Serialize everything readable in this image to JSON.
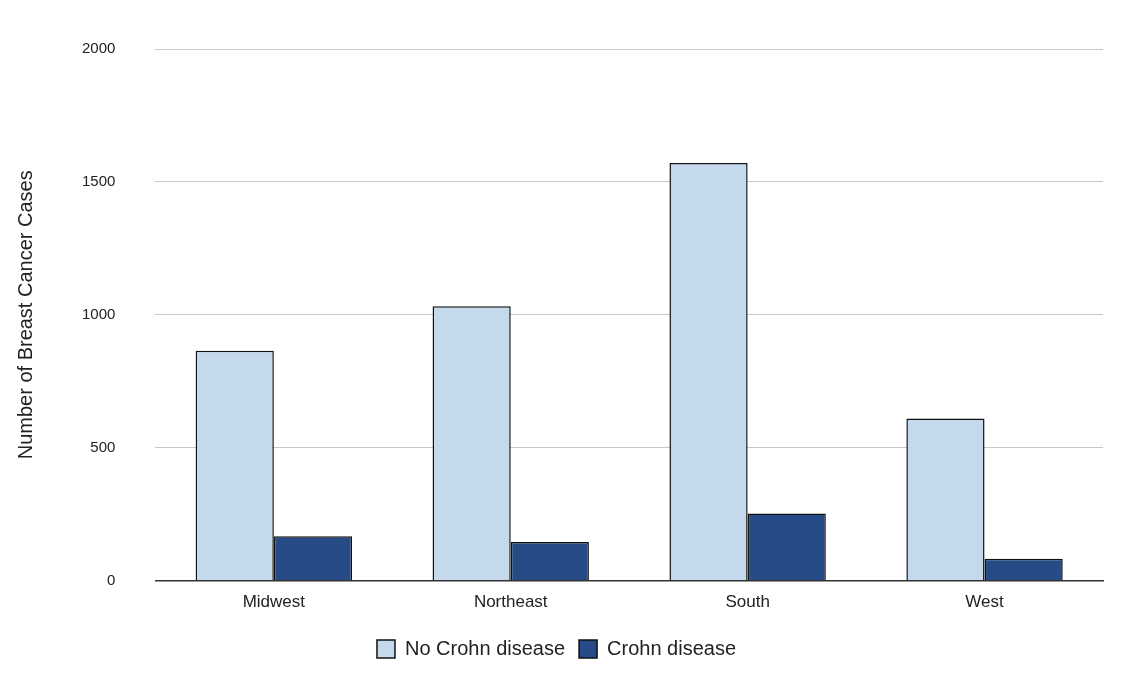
{
  "chart_data": {
    "type": "bar",
    "ylabel": "Number of Breast Cancer Cases",
    "categories": [
      "Midwest",
      "Northeast",
      "South",
      "West"
    ],
    "series": [
      {
        "name": "No Crohn disease",
        "color": "#c5d9ec",
        "values": [
          865,
          1032,
          1571,
          610
        ]
      },
      {
        "name": "Crohn disease",
        "color": "#264b87",
        "values": [
          167,
          145,
          252,
          82
        ]
      }
    ],
    "ylim": [
      0,
      2000
    ],
    "yticks": [
      0,
      500,
      1000,
      1500,
      2000
    ],
    "grid": "y",
    "legend": "bottom"
  }
}
